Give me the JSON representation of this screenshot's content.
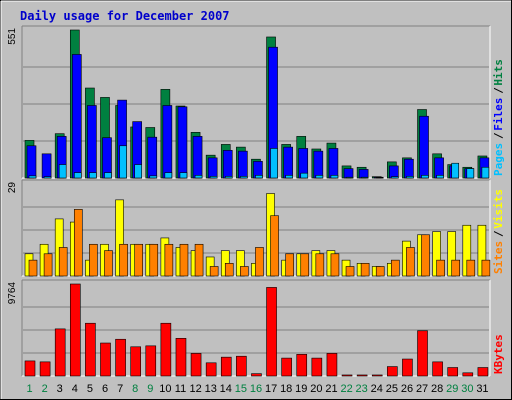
{
  "chart_data": {
    "type": "bar",
    "title": "Daily usage for December 2007",
    "categories": [
      "1",
      "2",
      "3",
      "4",
      "5",
      "6",
      "7",
      "8",
      "9",
      "10",
      "11",
      "12",
      "13",
      "14",
      "15",
      "16",
      "17",
      "18",
      "19",
      "20",
      "21",
      "22",
      "23",
      "24",
      "25",
      "26",
      "27",
      "28",
      "29",
      "30",
      "31"
    ],
    "weekend_days": [
      "1",
      "2",
      "8",
      "9",
      "15",
      "16",
      "22",
      "23",
      "29",
      "30"
    ],
    "colors": {
      "title": "#0000cc",
      "background": "#c0c0c0",
      "hits": "#008040",
      "files": "#0000ff",
      "pages": "#00c0ff",
      "visits": "#ffff00",
      "sites": "#ff8000",
      "kbytes": "#ff0000",
      "weekday_label": "#000000",
      "weekend_label": "#008040"
    },
    "panels": [
      {
        "id": "top",
        "max_label": "551",
        "ylim": [
          0,
          551
        ],
        "legend": [
          "Pages",
          "Files",
          "Hits"
        ],
        "legend_colors": [
          "#00c0ff",
          "#0000ff",
          "#008040"
        ],
        "series": [
          {
            "name": "Hits",
            "values": [
              140,
              0,
              165,
              551,
              335,
              300,
              270,
              190,
              188,
              330,
              268,
              170,
              85,
              125,
              115,
              70,
              525,
              125,
              155,
              108,
              130,
              45,
              40,
              5,
              60,
              75,
              255,
              90,
              50,
              40,
              82
            ]
          },
          {
            "name": "Files",
            "values": [
              120,
              90,
              155,
              460,
              270,
              150,
              290,
              210,
              152,
              270,
              265,
              155,
              75,
              103,
              100,
              62,
              487,
              115,
              110,
              100,
              110,
              35,
              32,
              3,
              45,
              70,
              230,
              75,
              45,
              35,
              75
            ]
          },
          {
            "name": "Pages",
            "values": [
              8,
              5,
              50,
              20,
              20,
              20,
              120,
              50,
              8,
              20,
              20,
              10,
              6,
              6,
              6,
              10,
              110,
              10,
              18,
              10,
              10,
              3,
              3,
              1,
              5,
              6,
              10,
              10,
              55,
              35,
              40
            ]
          }
        ]
      },
      {
        "id": "middle",
        "max_label": "29",
        "ylim": [
          0,
          29
        ],
        "legend": [
          "Sites",
          "Visits"
        ],
        "legend_colors": [
          "#ff8000",
          "#ffff00"
        ],
        "series": [
          {
            "name": "Visits",
            "values": [
              7,
              10,
              18,
              17,
              5,
              10,
              24,
              10,
              10,
              12,
              9,
              8,
              6,
              8,
              8,
              4,
              26,
              5,
              7,
              8,
              8,
              5,
              4,
              3,
              4,
              11,
              13,
              14,
              14,
              16,
              16
            ]
          },
          {
            "name": "Sites",
            "values": [
              5,
              7,
              9,
              21,
              10,
              8,
              10,
              10,
              10,
              10,
              10,
              10,
              3,
              4,
              3,
              9,
              19,
              7,
              7,
              7,
              7,
              3,
              4,
              3,
              5,
              9,
              13,
              5,
              5,
              5,
              5
            ]
          }
        ]
      },
      {
        "id": "bottom",
        "max_label": "9764",
        "ylim": [
          0,
          9764
        ],
        "legend": [
          "KBytes"
        ],
        "legend_colors": [
          "#ff0000"
        ],
        "series": [
          {
            "name": "KBytes",
            "values": [
              1600,
              1500,
              5000,
              9764,
              5600,
              3500,
              3900,
              3100,
              3200,
              5600,
              4000,
              2400,
              1400,
              2000,
              2100,
              250,
              9400,
              1900,
              2300,
              1900,
              2400,
              110,
              110,
              110,
              1000,
              1800,
              4800,
              1500,
              900,
              340,
              900
            ]
          }
        ]
      }
    ]
  }
}
